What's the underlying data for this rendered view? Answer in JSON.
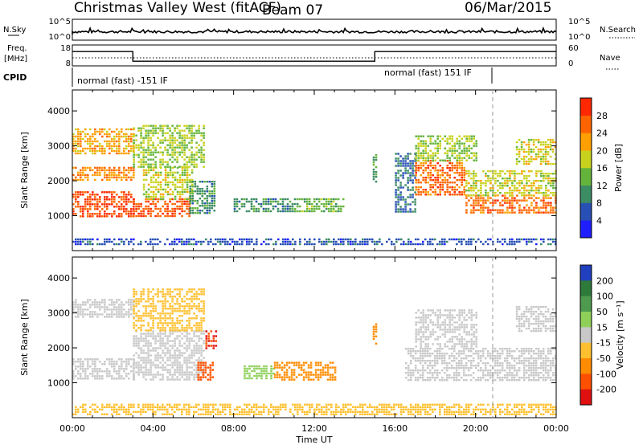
{
  "header": {
    "station": "Christmas Valley West (fitACF)",
    "beam": "Beam 07",
    "date": "06/Mar/2015"
  },
  "strips": {
    "nsky_label": "N.Sky",
    "nsky_ticks": [
      "10^5",
      "10^0"
    ],
    "nsearch_label": "N.Search",
    "freq_label_1": "Freq.",
    "freq_label_2": "[MHz]",
    "freq_ticks": [
      "18",
      "8"
    ],
    "nave_label": "Nave",
    "nave_ticks": [
      "60",
      "0"
    ],
    "cpid_label": "CPID",
    "cpid_segments": [
      {
        "label": "normal (fast) -151 IF",
        "start_hour": 0,
        "end_hour": 21
      },
      {
        "label": "normal (fast) 151 IF",
        "start_hour": 21,
        "end_hour": 24
      }
    ],
    "freq_steps": [
      {
        "start_hour": 0,
        "end_hour": 3,
        "mhz": 15
      },
      {
        "start_hour": 3,
        "end_hour": 15,
        "mhz": 10
      },
      {
        "start_hour": 15,
        "end_hour": 24,
        "mhz": 15
      }
    ]
  },
  "axes": {
    "x_ticks": [
      "00:00",
      "04:00",
      "08:00",
      "12:00",
      "16:00",
      "20:00",
      "00:00"
    ],
    "x_label": "Time UT",
    "y_ticks": [
      "1000",
      "2000",
      "3000",
      "4000"
    ],
    "y_label": "Slant Range [km]"
  },
  "colorbars": {
    "power": {
      "label": "Power [dB]",
      "ticks": [
        "4",
        "8",
        "12",
        "16",
        "20",
        "24",
        "28"
      ],
      "colors": [
        "#1e1eff",
        "#2850b4",
        "#3c8c64",
        "#64b43c",
        "#c8d21e",
        "#ffa000",
        "#ff6400",
        "#ff2800"
      ]
    },
    "velocity": {
      "label": "Velocity [m s⁻¹]",
      "ticks": [
        "200",
        "100",
        "50",
        "15",
        "-15",
        "-50",
        "-100",
        "-200"
      ],
      "colors": [
        "#2040c0",
        "#2e7a3a",
        "#4e9a4e",
        "#8ed05a",
        "#c8c8c8",
        "#ffc030",
        "#ff8c00",
        "#ff5000",
        "#e01010"
      ]
    }
  },
  "chart_data": [
    {
      "type": "heatmap",
      "title": "Power",
      "xlabel": "Time UT",
      "ylabel": "Slant Range [km]",
      "xlim": [
        0,
        24
      ],
      "ylim": [
        0,
        4600
      ],
      "colorbar_label": "Power [dB]",
      "colorbar_range": [
        0,
        32
      ],
      "echo_regions": [
        {
          "t0": 0.0,
          "t1": 3.0,
          "r0": 1000,
          "r1": 1700,
          "value": 28
        },
        {
          "t0": 0.0,
          "t1": 3.0,
          "r0": 2000,
          "r1": 2400,
          "value": 24
        },
        {
          "t0": 0.0,
          "t1": 3.0,
          "r0": 2800,
          "r1": 3500,
          "value": 22
        },
        {
          "t0": 3.0,
          "t1": 5.8,
          "r0": 1000,
          "r1": 1500,
          "value": 27
        },
        {
          "t0": 3.5,
          "t1": 6.0,
          "r0": 1500,
          "r1": 2400,
          "value": 18
        },
        {
          "t0": 3.0,
          "t1": 6.5,
          "r0": 2400,
          "r1": 3600,
          "value": 16
        },
        {
          "t0": 5.8,
          "t1": 7.0,
          "r0": 1100,
          "r1": 2000,
          "value": 10
        },
        {
          "t0": 8.0,
          "t1": 11.0,
          "r0": 1100,
          "r1": 1500,
          "value": 10
        },
        {
          "t0": 11.0,
          "t1": 13.5,
          "r0": 1100,
          "r1": 1500,
          "value": 14
        },
        {
          "t0": 14.9,
          "t1": 15.1,
          "r0": 2000,
          "r1": 2900,
          "value": 12
        },
        {
          "t0": 16.0,
          "t1": 17.0,
          "r0": 1100,
          "r1": 2800,
          "value": 8
        },
        {
          "t0": 17.0,
          "t1": 19.5,
          "r0": 1600,
          "r1": 2600,
          "value": 26
        },
        {
          "t0": 17.0,
          "t1": 20.0,
          "r0": 2600,
          "r1": 3300,
          "value": 16
        },
        {
          "t0": 19.5,
          "t1": 24.0,
          "r0": 1100,
          "r1": 1600,
          "value": 26
        },
        {
          "t0": 19.5,
          "t1": 24.0,
          "r0": 1600,
          "r1": 2300,
          "value": 18
        },
        {
          "t0": 22.0,
          "t1": 24.0,
          "r0": 2500,
          "r1": 3200,
          "value": 18
        },
        {
          "t0": 0.0,
          "t1": 24.0,
          "r0": 150,
          "r1": 350,
          "value": 6
        }
      ]
    },
    {
      "type": "heatmap",
      "title": "Velocity",
      "xlabel": "Time UT",
      "ylabel": "Slant Range [km]",
      "xlim": [
        0,
        24
      ],
      "ylim": [
        0,
        4600
      ],
      "colorbar_label": "Velocity [m s⁻¹]",
      "colorbar_range": [
        -200,
        200
      ],
      "echo_regions": [
        {
          "t0": 0.0,
          "t1": 3.0,
          "r0": 1100,
          "r1": 1700,
          "value": 0
        },
        {
          "t0": 0.0,
          "t1": 3.0,
          "r0": 2900,
          "r1": 3400,
          "value": 0
        },
        {
          "t0": 3.0,
          "t1": 6.5,
          "r0": 1100,
          "r1": 2500,
          "value": 0
        },
        {
          "t0": 3.0,
          "t1": 6.5,
          "r0": 2500,
          "r1": 3700,
          "value": -30
        },
        {
          "t0": 6.2,
          "t1": 7.0,
          "r0": 1100,
          "r1": 1600,
          "value": -150
        },
        {
          "t0": 6.6,
          "t1": 7.1,
          "r0": 2000,
          "r1": 2500,
          "value": -200
        },
        {
          "t0": 8.5,
          "t1": 10.0,
          "r0": 1100,
          "r1": 1500,
          "value": 40
        },
        {
          "t0": 10.0,
          "t1": 13.0,
          "r0": 1100,
          "r1": 1600,
          "value": -60
        },
        {
          "t0": 14.9,
          "t1": 15.1,
          "r0": 2100,
          "r1": 2700,
          "value": -80
        },
        {
          "t0": 16.5,
          "t1": 24.0,
          "r0": 1100,
          "r1": 2000,
          "value": 0
        },
        {
          "t0": 17.0,
          "t1": 20.0,
          "r0": 2000,
          "r1": 3100,
          "value": 0
        },
        {
          "t0": 22.0,
          "t1": 24.0,
          "r0": 2500,
          "r1": 3200,
          "value": 0
        },
        {
          "t0": 0.0,
          "t1": 24.0,
          "r0": 100,
          "r1": 400,
          "value": -40
        }
      ]
    }
  ]
}
